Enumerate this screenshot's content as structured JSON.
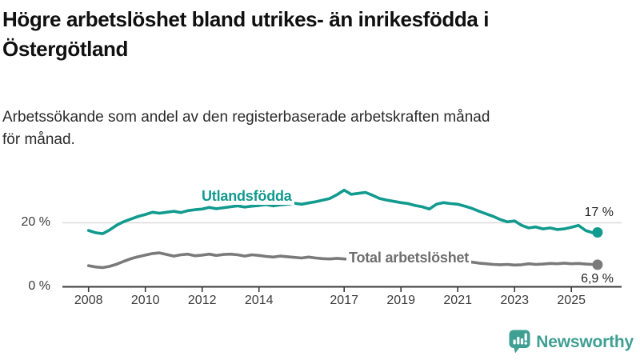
{
  "header": {
    "title_lines": [
      "Högre arbetslöshet bland utrikes- än inrikesfödda i",
      "Östergötland"
    ],
    "subtitle_lines": [
      "Arbetssökande som andel av den registerbaserade arbetskraften månad",
      "för månad."
    ]
  },
  "colors": {
    "teal": "#119a8e",
    "gray": "#7a7a7a",
    "gray_label": "#6e6e6e",
    "grid": "#dadada",
    "axis": "#3a3a3a",
    "logo_teal": "#3f9f93"
  },
  "chart_data": {
    "type": "line",
    "title": "Högre arbetslöshet bland utrikes- än inrikesfödda i Östergötland",
    "subtitle": "Arbetssökande som andel av den registerbaserade arbetskraften månad för månad.",
    "ylabels": {
      "y20": "20 %",
      "y0": "0 %"
    },
    "ylim": [
      0,
      36
    ],
    "grid": "single-line-at-20",
    "xticks": [
      {
        "year": 2008,
        "label": "2008"
      },
      {
        "year": 2010,
        "label": "2010"
      },
      {
        "year": 2012,
        "label": "2012"
      },
      {
        "year": 2014,
        "label": "2014"
      },
      {
        "year": 2017,
        "label": "2017"
      },
      {
        "year": 2019,
        "label": "2019"
      },
      {
        "year": 2021,
        "label": "2021"
      },
      {
        "year": 2023,
        "label": "2023"
      },
      {
        "year": 2025,
        "label": "2025"
      }
    ],
    "x": [
      2008.0,
      2008.25,
      2008.5,
      2008.75,
      2009.0,
      2009.25,
      2009.5,
      2009.75,
      2010.0,
      2010.25,
      2010.5,
      2010.75,
      2011.0,
      2011.25,
      2011.5,
      2011.75,
      2012.0,
      2012.25,
      2012.5,
      2012.75,
      2013.0,
      2013.25,
      2013.5,
      2013.75,
      2014.0,
      2014.25,
      2014.5,
      2014.75,
      2015.0,
      2015.25,
      2015.5,
      2015.75,
      2016.0,
      2016.25,
      2016.5,
      2016.75,
      2017.0,
      2017.25,
      2017.5,
      2017.75,
      2018.0,
      2018.25,
      2018.5,
      2018.75,
      2019.0,
      2019.25,
      2019.5,
      2019.75,
      2020.0,
      2020.25,
      2020.5,
      2020.75,
      2021.0,
      2021.25,
      2021.5,
      2021.75,
      2022.0,
      2022.25,
      2022.5,
      2022.75,
      2023.0,
      2023.25,
      2023.5,
      2023.75,
      2024.0,
      2024.25,
      2024.5,
      2024.75,
      2025.0,
      2025.25,
      2025.5,
      2025.75,
      2025.92
    ],
    "series": [
      {
        "name": "Utlandsfödda",
        "color_key": "teal",
        "end_label": "17 %",
        "end_value": 17,
        "values": [
          17.6,
          16.9,
          16.6,
          17.8,
          19.3,
          20.4,
          21.2,
          22.0,
          22.6,
          23.3,
          23.0,
          23.3,
          23.6,
          23.2,
          23.8,
          24.1,
          24.3,
          24.8,
          24.4,
          24.7,
          25.0,
          25.3,
          24.9,
          25.2,
          25.4,
          25.7,
          25.3,
          25.6,
          25.8,
          26.1,
          25.8,
          26.2,
          26.6,
          27.1,
          27.6,
          28.8,
          30.2,
          28.9,
          29.2,
          29.5,
          28.6,
          27.6,
          27.1,
          26.7,
          26.3,
          26.0,
          25.4,
          25.0,
          24.3,
          25.8,
          26.3,
          26.0,
          25.8,
          25.2,
          24.5,
          23.6,
          22.8,
          22.0,
          21.0,
          20.3,
          20.6,
          19.2,
          18.4,
          18.7,
          18.1,
          18.4,
          17.9,
          18.1,
          18.6,
          19.2,
          17.6,
          16.9,
          17.0
        ]
      },
      {
        "name": "Total arbetslöshet",
        "color_key": "gray",
        "end_label": "6,9 %",
        "end_value": 6.9,
        "values": [
          6.6,
          6.2,
          6.0,
          6.4,
          7.1,
          8.0,
          8.8,
          9.4,
          9.9,
          10.4,
          10.6,
          10.1,
          9.6,
          10.0,
          10.2,
          9.7,
          9.9,
          10.2,
          9.8,
          10.1,
          10.2,
          10.0,
          9.6,
          10.0,
          9.8,
          9.5,
          9.3,
          9.6,
          9.4,
          9.2,
          9.0,
          9.3,
          9.0,
          8.8,
          8.7,
          8.9,
          8.7,
          8.6,
          8.5,
          8.4,
          8.2,
          8.0,
          7.8,
          7.6,
          7.5,
          7.4,
          7.3,
          7.1,
          7.5,
          8.6,
          8.8,
          8.6,
          8.3,
          8.0,
          7.7,
          7.4,
          7.2,
          7.0,
          6.9,
          7.0,
          6.8,
          6.9,
          7.2,
          7.0,
          7.1,
          7.3,
          7.2,
          7.4,
          7.2,
          7.3,
          7.1,
          7.0,
          6.9
        ]
      }
    ],
    "legend_position": "inline-labels"
  },
  "branding": {
    "name": "Newsworthy"
  }
}
